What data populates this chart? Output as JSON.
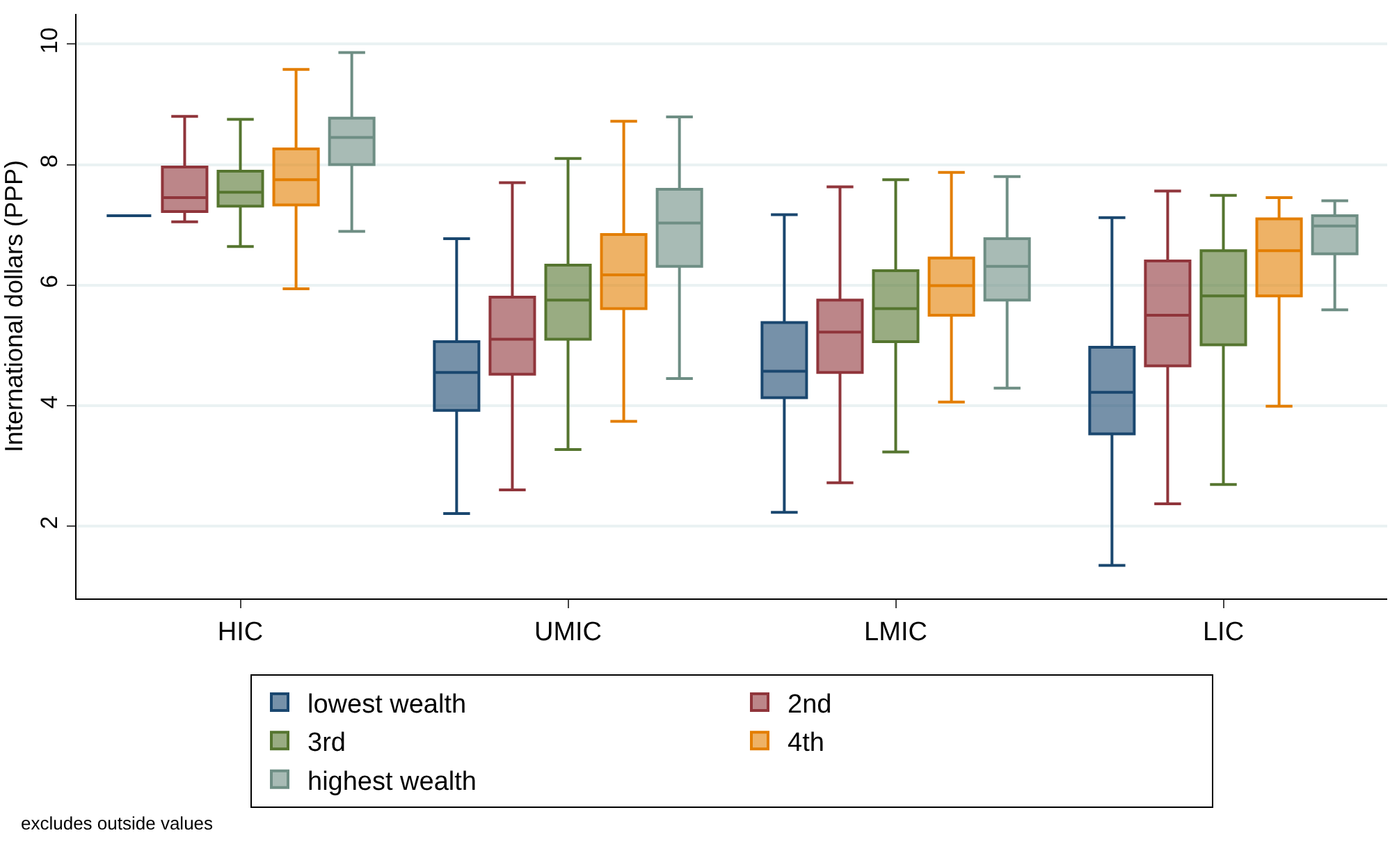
{
  "chart_data": {
    "type": "box",
    "ylabel": "International dollars (PPP)",
    "categories": [
      "HIC",
      "UMIC",
      "LMIC",
      "LIC"
    ],
    "ylim": [
      0.8,
      10.5
    ],
    "yticks": [
      2,
      4,
      6,
      8,
      10
    ],
    "grid": "y",
    "legend": "bottom",
    "annotations": [
      "excludes outside values"
    ],
    "series": [
      {
        "name": "lowest wealth",
        "color": "#1a476f",
        "boxes": [
          {
            "low": 7.15,
            "q1": 7.15,
            "median": 7.15,
            "q3": 7.15,
            "high": 7.15
          },
          {
            "low": 2.21,
            "q1": 3.92,
            "median": 4.55,
            "q3": 5.06,
            "high": 6.77
          },
          {
            "low": 2.23,
            "q1": 4.13,
            "median": 4.57,
            "q3": 5.38,
            "high": 7.17
          },
          {
            "low": 1.35,
            "q1": 3.53,
            "median": 4.22,
            "q3": 4.97,
            "high": 7.12
          }
        ]
      },
      {
        "name": "2nd",
        "color": "#90353b",
        "boxes": [
          {
            "low": 7.05,
            "q1": 7.22,
            "median": 7.45,
            "q3": 7.96,
            "high": 8.8
          },
          {
            "low": 2.6,
            "q1": 4.52,
            "median": 5.1,
            "q3": 5.8,
            "high": 7.7
          },
          {
            "low": 2.72,
            "q1": 4.55,
            "median": 5.22,
            "q3": 5.75,
            "high": 7.63
          },
          {
            "low": 2.37,
            "q1": 4.66,
            "median": 5.5,
            "q3": 6.4,
            "high": 7.56
          }
        ]
      },
      {
        "name": "3rd",
        "color": "#55752f",
        "boxes": [
          {
            "low": 6.64,
            "q1": 7.31,
            "median": 7.54,
            "q3": 7.89,
            "high": 8.75
          },
          {
            "low": 3.27,
            "q1": 5.1,
            "median": 5.75,
            "q3": 6.33,
            "high": 8.1
          },
          {
            "low": 3.23,
            "q1": 5.06,
            "median": 5.61,
            "q3": 6.24,
            "high": 7.75
          },
          {
            "low": 2.69,
            "q1": 5.01,
            "median": 5.82,
            "q3": 6.57,
            "high": 7.49
          }
        ]
      },
      {
        "name": "4th",
        "color": "#e37e00",
        "boxes": [
          {
            "low": 5.94,
            "q1": 7.33,
            "median": 7.75,
            "q3": 8.26,
            "high": 9.58
          },
          {
            "low": 3.74,
            "q1": 5.61,
            "median": 6.17,
            "q3": 6.84,
            "high": 8.72
          },
          {
            "low": 4.06,
            "q1": 5.5,
            "median": 5.99,
            "q3": 6.45,
            "high": 7.87
          },
          {
            "low": 3.99,
            "q1": 5.82,
            "median": 6.57,
            "q3": 7.1,
            "high": 7.45
          }
        ]
      },
      {
        "name": "highest wealth",
        "color": "#6e8e84",
        "boxes": [
          {
            "low": 6.89,
            "q1": 8.0,
            "median": 8.45,
            "q3": 8.77,
            "high": 9.86
          },
          {
            "low": 4.45,
            "q1": 6.31,
            "median": 7.03,
            "q3": 7.59,
            "high": 8.79
          },
          {
            "low": 4.29,
            "q1": 5.75,
            "median": 6.31,
            "q3": 6.77,
            "high": 7.8
          },
          {
            "low": 5.59,
            "q1": 6.52,
            "median": 6.98,
            "q3": 7.15,
            "high": 7.4
          }
        ]
      }
    ]
  }
}
